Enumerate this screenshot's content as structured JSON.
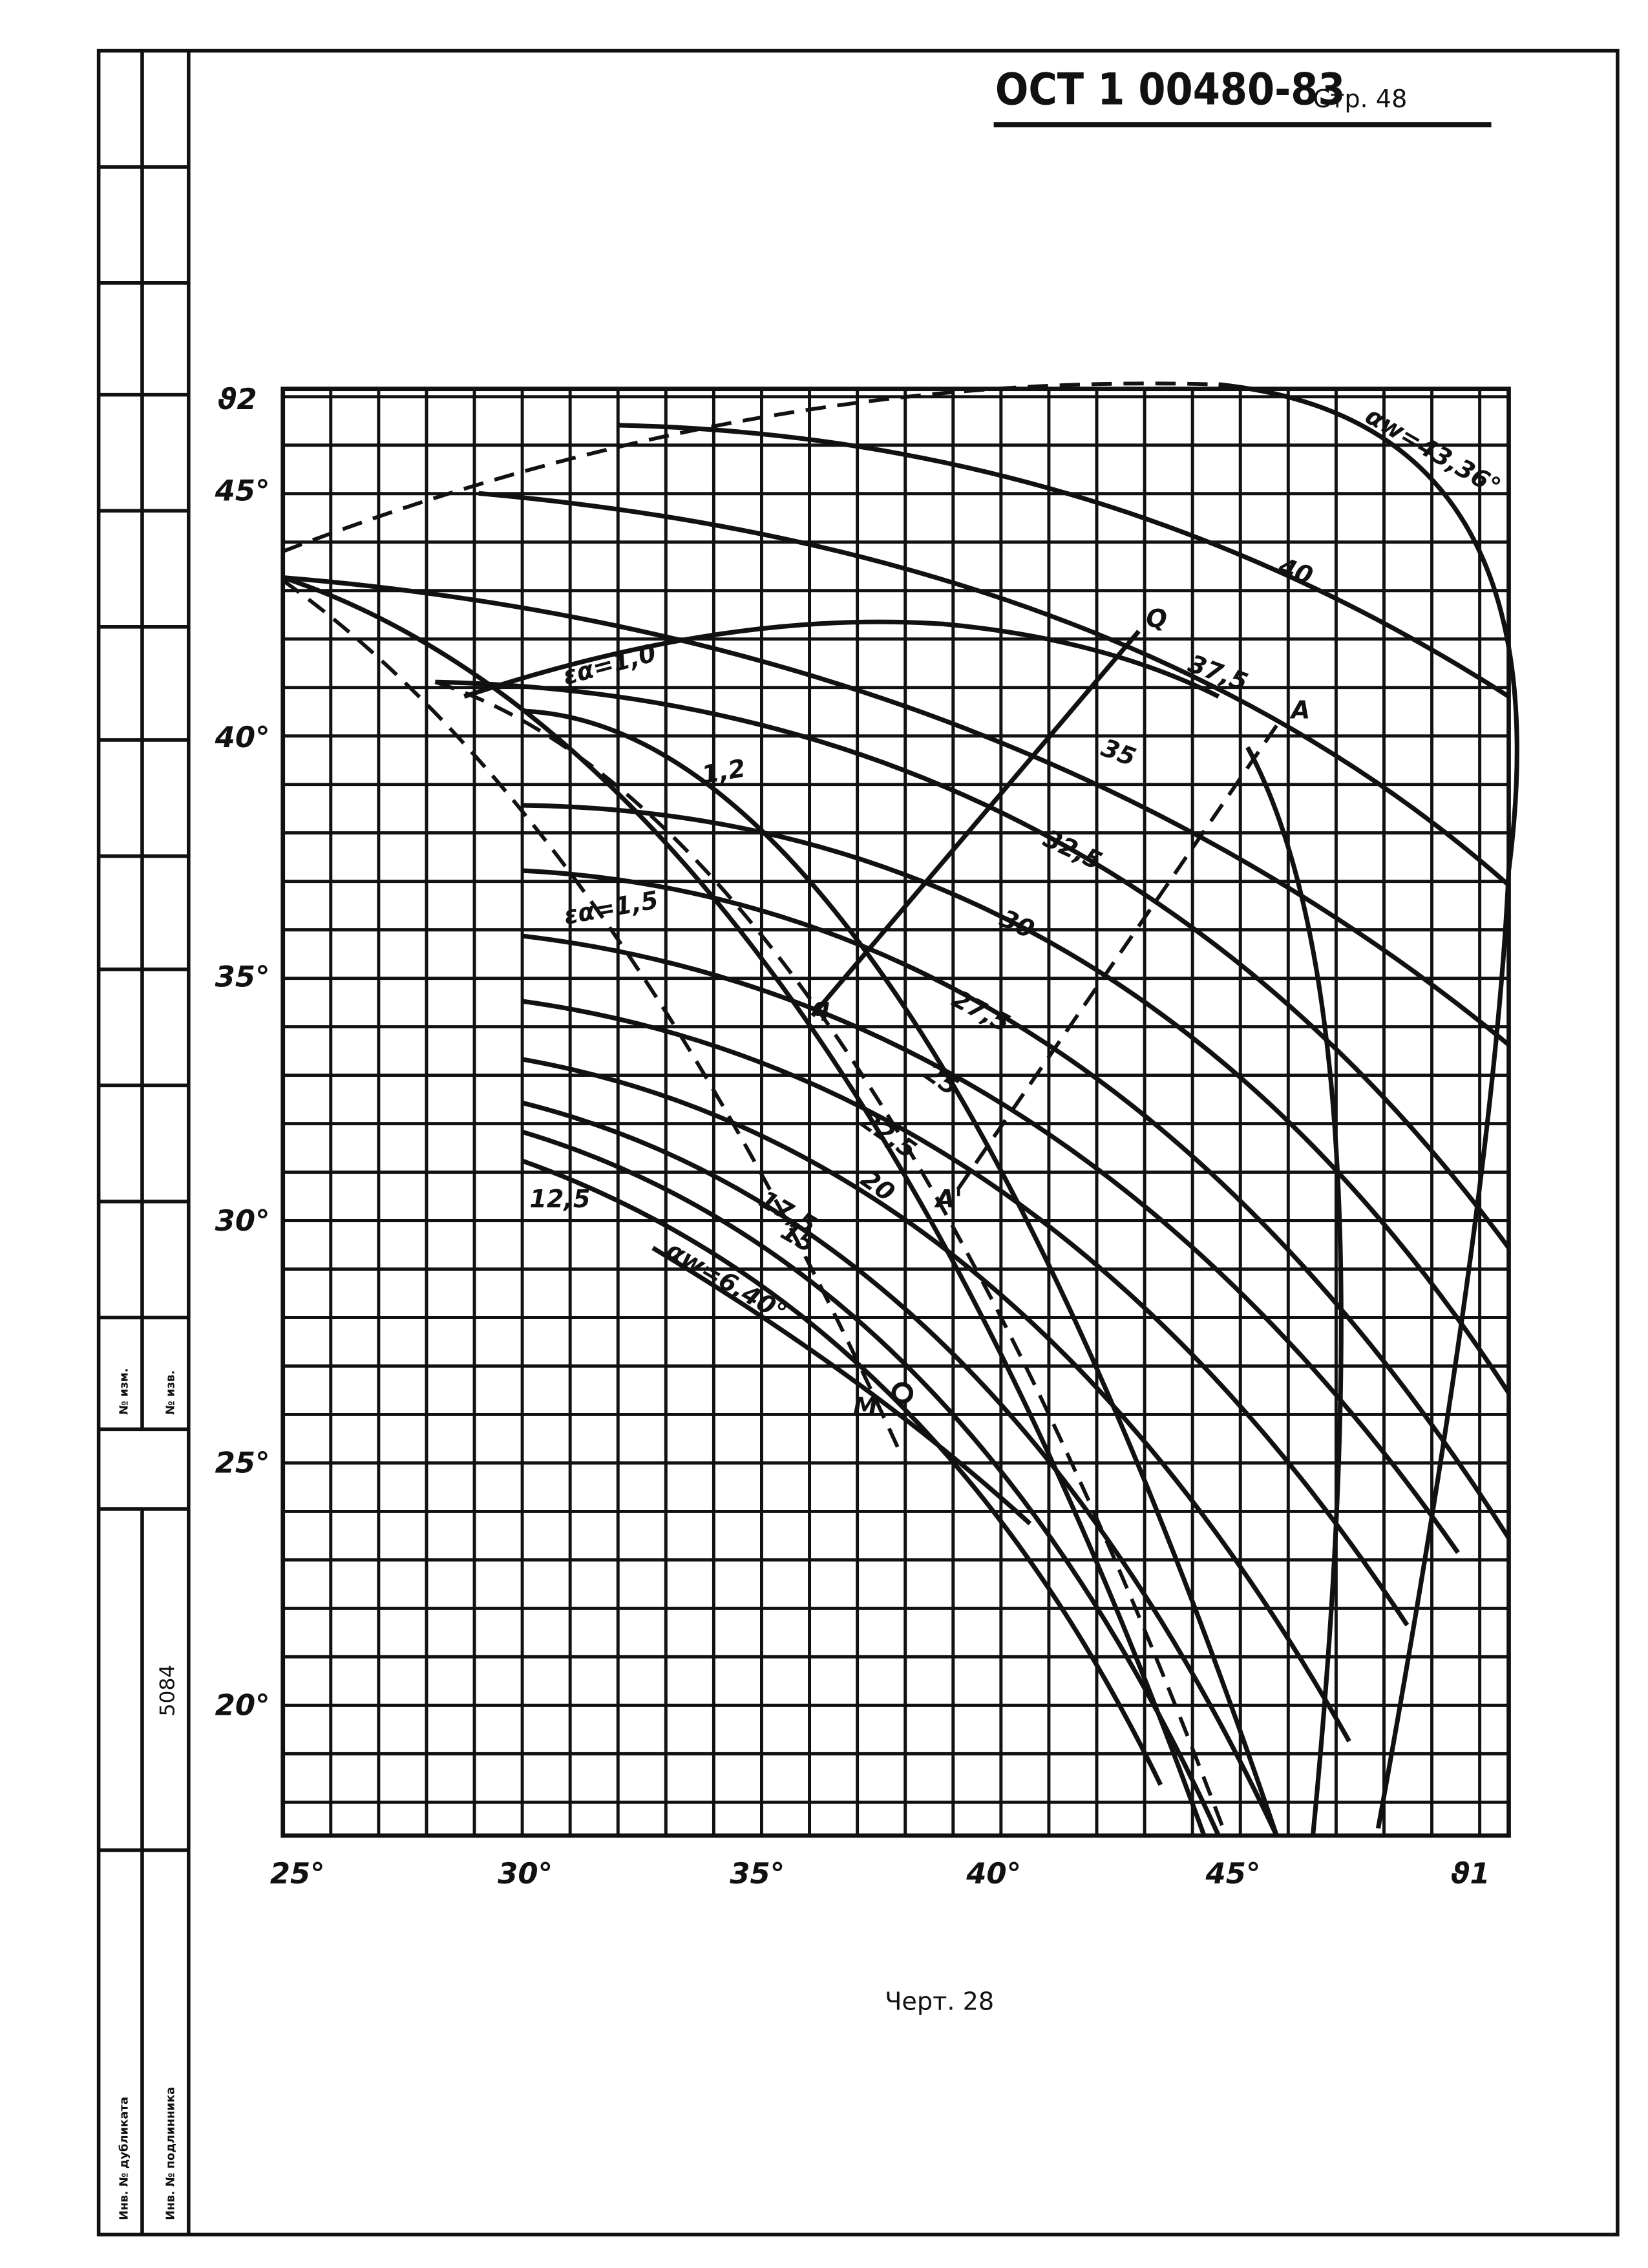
{
  "header": {
    "standard": "ОСТ 1 00480-83",
    "page": "Стр. 48"
  },
  "stamp": {
    "archive_no": "5084",
    "labels": [
      "№ изм.",
      "№ изв.",
      "Инв. № дубликата",
      "Инв. № подлинника"
    ]
  },
  "chart": {
    "y_axis_label": "ϑ2",
    "x_axis_label": "ϑ1",
    "x_ticks": [
      "25°",
      "30°",
      "35°",
      "40°",
      "45°"
    ],
    "y_ticks": [
      "45°",
      "40°",
      "35°",
      "30°",
      "25°",
      "20°"
    ],
    "curve_labels": [
      "αw=43,36°",
      "40",
      "37,5",
      "35",
      "32,5",
      "30",
      "27,5",
      "25",
      "22,5",
      "20",
      "17,5",
      "15",
      "12,5",
      "αw=6,40°",
      "εα=1,0",
      "1,2",
      "εα=1,5"
    ],
    "point_labels": [
      "Q",
      "A",
      "q",
      "A'",
      "M"
    ]
  },
  "caption": "Черт. 28"
}
